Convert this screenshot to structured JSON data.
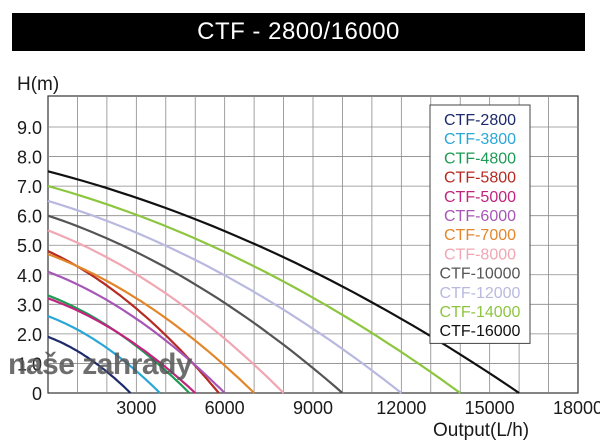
{
  "title": "CTF - 2800/16000",
  "watermark": "naše zahrady",
  "chart_data": {
    "type": "line",
    "title": "CTF - 2800/16000",
    "ylabel": "H(m)",
    "xlabel": "Output(L/h)",
    "xlim": [
      0,
      18000
    ],
    "ylim": [
      0,
      9.0
    ],
    "x_ticks": [
      "0",
      "3000",
      "6000",
      "9000",
      "12000",
      "15000",
      "18000"
    ],
    "y_ticks": [
      "0",
      "1.0",
      "2.0",
      "3.0",
      "4.0",
      "5.0",
      "6.0",
      "7.0",
      "8.0",
      "9.0"
    ],
    "grid": true,
    "legend_position": "top-right",
    "series": [
      {
        "name": "CTF-2800",
        "color": "#1d2a6b",
        "x": [
          0,
          2800
        ],
        "y": [
          1.9,
          0
        ]
      },
      {
        "name": "CTF-3800",
        "color": "#2aa7d6",
        "x": [
          0,
          3800
        ],
        "y": [
          2.6,
          0
        ]
      },
      {
        "name": "CTF-4800",
        "color": "#1f9a55",
        "x": [
          0,
          4800
        ],
        "y": [
          3.3,
          0
        ]
      },
      {
        "name": "CTF-5800",
        "color": "#b52a22",
        "x": [
          0,
          5800
        ],
        "y": [
          4.8,
          0
        ]
      },
      {
        "name": "CTF-5000",
        "color": "#c2237e",
        "x": [
          0,
          5000
        ],
        "y": [
          3.2,
          0
        ]
      },
      {
        "name": "CTF-6000",
        "color": "#a656b5",
        "x": [
          0,
          6000
        ],
        "y": [
          4.1,
          0
        ]
      },
      {
        "name": "CTF-7000",
        "color": "#e3862a",
        "x": [
          0,
          7000
        ],
        "y": [
          4.7,
          0
        ]
      },
      {
        "name": "CTF-8000",
        "color": "#f0a7b2",
        "x": [
          0,
          8000
        ],
        "y": [
          5.5,
          0
        ]
      },
      {
        "name": "CTF-10000",
        "color": "#555555",
        "x": [
          0,
          10000
        ],
        "y": [
          6.0,
          0
        ]
      },
      {
        "name": "CTF-12000",
        "color": "#b9b9e0",
        "x": [
          0,
          12000
        ],
        "y": [
          6.5,
          0
        ]
      },
      {
        "name": "CTF-14000",
        "color": "#8cc63f",
        "x": [
          0,
          14000
        ],
        "y": [
          7.0,
          0
        ]
      },
      {
        "name": "CTF-16000",
        "color": "#111111",
        "x": [
          0,
          16000
        ],
        "y": [
          7.5,
          0
        ]
      }
    ]
  }
}
